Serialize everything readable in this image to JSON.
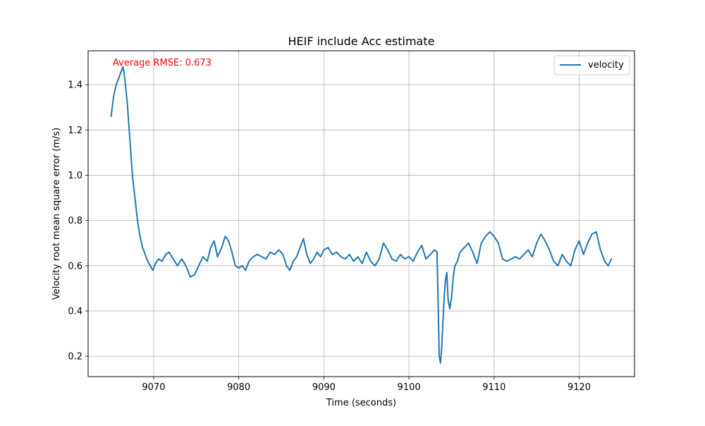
{
  "chart_data": {
    "type": "line",
    "title": "HEIF include Acc estimate",
    "xlabel": "Time (seconds)",
    "ylabel": "Velocity root mean square error (m/s)",
    "annotation": "Average RMSE: 0.673",
    "annotation_color": "#ff0000",
    "grid": true,
    "legend_position": "top-right",
    "xlim": [
      9062.3,
      9126.5
    ],
    "ylim": [
      0.11,
      1.55
    ],
    "x_ticks": [
      9070,
      9080,
      9090,
      9100,
      9110,
      9120
    ],
    "y_ticks": [
      0.2,
      0.4,
      0.6,
      0.8,
      1.0,
      1.2,
      1.4
    ],
    "x_tick_labels": [
      "9070",
      "9080",
      "9090",
      "9100",
      "9110",
      "9120"
    ],
    "y_tick_labels": [
      "0.2",
      "0.4",
      "0.6",
      "0.8",
      "1.0",
      "1.2",
      "1.4"
    ],
    "series": [
      {
        "name": "velocity",
        "color": "#1f77b4",
        "x": [
          9065.0,
          9065.3,
          9065.6,
          9065.9,
          9066.2,
          9066.4,
          9066.6,
          9066.9,
          9067.2,
          9067.5,
          9067.8,
          9068.1,
          9068.4,
          9068.7,
          9069.0,
          9069.3,
          9069.6,
          9069.9,
          9070.2,
          9070.6,
          9071.0,
          9071.4,
          9071.8,
          9072.3,
          9072.8,
          9073.3,
          9073.8,
          9074.3,
          9074.8,
          9075.3,
          9075.8,
          9076.3,
          9076.7,
          9077.1,
          9077.5,
          9078.0,
          9078.4,
          9078.8,
          9079.2,
          9079.6,
          9080.0,
          9080.4,
          9080.8,
          9081.2,
          9081.7,
          9082.2,
          9082.7,
          9083.2,
          9083.7,
          9084.2,
          9084.7,
          9085.2,
          9085.6,
          9086.0,
          9086.4,
          9086.8,
          9087.2,
          9087.6,
          9088.0,
          9088.4,
          9088.8,
          9089.2,
          9089.6,
          9090.0,
          9090.5,
          9091.0,
          9091.5,
          9092.0,
          9092.5,
          9093.0,
          9093.5,
          9094.0,
          9094.5,
          9095.0,
          9095.5,
          9096.0,
          9096.5,
          9097.0,
          9097.5,
          9098.0,
          9098.5,
          9099.0,
          9099.5,
          9100.0,
          9100.5,
          9101.0,
          9101.5,
          9102.0,
          9102.5,
          9103.0,
          9103.3,
          9103.45,
          9103.55,
          9103.7,
          9103.85,
          9104.0,
          9104.15,
          9104.3,
          9104.45,
          9104.6,
          9104.8,
          9105.0,
          9105.2,
          9105.4,
          9105.7,
          9106.0,
          9106.5,
          9107.0,
          9107.5,
          9108.0,
          9108.5,
          9109.0,
          9109.5,
          9110.0,
          9110.5,
          9111.0,
          9111.5,
          9112.0,
          9112.5,
          9113.0,
          9113.5,
          9114.0,
          9114.5,
          9115.0,
          9115.5,
          9116.0,
          9116.5,
          9117.0,
          9117.5,
          9118.0,
          9118.5,
          9119.0,
          9119.5,
          9120.0,
          9120.5,
          9121.0,
          9121.5,
          9122.0,
          9122.5,
          9123.0,
          9123.4,
          9123.8
        ],
        "y": [
          1.26,
          1.35,
          1.4,
          1.43,
          1.46,
          1.48,
          1.43,
          1.32,
          1.16,
          1.0,
          0.9,
          0.8,
          0.73,
          0.68,
          0.65,
          0.62,
          0.6,
          0.58,
          0.61,
          0.63,
          0.62,
          0.65,
          0.66,
          0.63,
          0.6,
          0.63,
          0.6,
          0.55,
          0.56,
          0.6,
          0.64,
          0.62,
          0.68,
          0.71,
          0.64,
          0.68,
          0.73,
          0.71,
          0.66,
          0.6,
          0.59,
          0.6,
          0.58,
          0.62,
          0.64,
          0.65,
          0.64,
          0.63,
          0.66,
          0.65,
          0.67,
          0.65,
          0.6,
          0.58,
          0.62,
          0.64,
          0.68,
          0.72,
          0.65,
          0.61,
          0.63,
          0.66,
          0.64,
          0.67,
          0.68,
          0.65,
          0.66,
          0.64,
          0.63,
          0.65,
          0.62,
          0.64,
          0.61,
          0.66,
          0.62,
          0.6,
          0.63,
          0.7,
          0.67,
          0.63,
          0.62,
          0.65,
          0.63,
          0.64,
          0.62,
          0.66,
          0.69,
          0.63,
          0.65,
          0.67,
          0.66,
          0.4,
          0.2,
          0.17,
          0.24,
          0.36,
          0.47,
          0.54,
          0.57,
          0.45,
          0.41,
          0.46,
          0.55,
          0.6,
          0.62,
          0.66,
          0.68,
          0.7,
          0.66,
          0.61,
          0.7,
          0.73,
          0.75,
          0.73,
          0.7,
          0.63,
          0.62,
          0.63,
          0.64,
          0.63,
          0.65,
          0.67,
          0.64,
          0.7,
          0.74,
          0.71,
          0.67,
          0.62,
          0.6,
          0.65,
          0.62,
          0.6,
          0.67,
          0.71,
          0.65,
          0.7,
          0.74,
          0.75,
          0.67,
          0.62,
          0.6,
          0.63
        ]
      }
    ]
  }
}
